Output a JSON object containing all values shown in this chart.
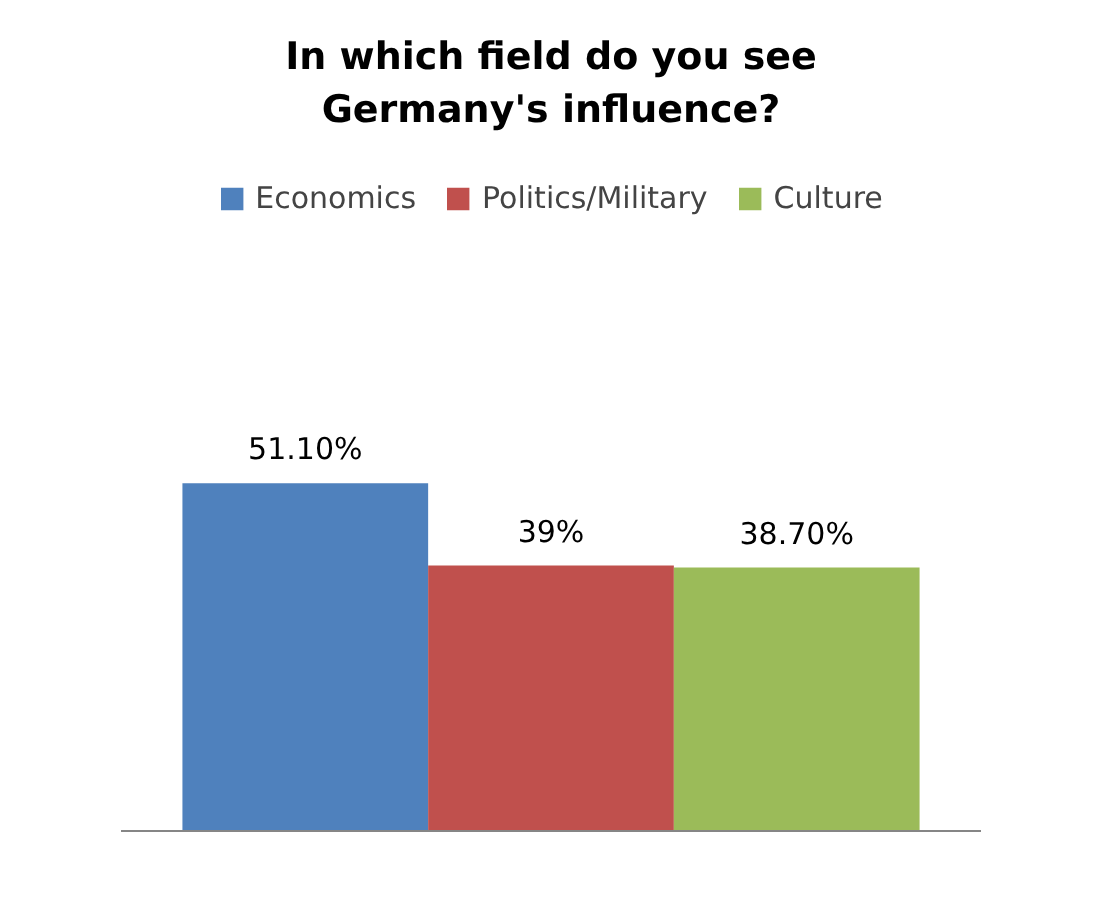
{
  "chart_data": {
    "type": "bar",
    "title": "In which field do you see Germany's influence?",
    "categories": [
      null
    ],
    "series": [
      {
        "name": "Economics",
        "color": "#4f81bd",
        "values": [
          51.1
        ],
        "value_labels": [
          "51.10%"
        ]
      },
      {
        "name": "Politics/Military",
        "color": "#c0504d",
        "values": [
          39
        ],
        "value_labels": [
          "39%"
        ]
      },
      {
        "name": "Culture",
        "color": "#9bbb59",
        "values": [
          38.7
        ],
        "value_labels": [
          "38.70%"
        ]
      }
    ],
    "grid": false,
    "legend": "top"
  }
}
